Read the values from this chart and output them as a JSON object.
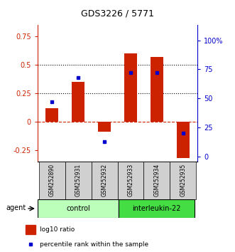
{
  "title": "GDS3226 / 5771",
  "categories": [
    "GSM252890",
    "GSM252931",
    "GSM252932",
    "GSM252933",
    "GSM252934",
    "GSM252935"
  ],
  "log10_ratio": [
    0.12,
    0.35,
    -0.09,
    0.6,
    0.57,
    -0.32
  ],
  "percentile_rank": [
    47,
    68,
    13,
    72,
    72,
    20
  ],
  "ylim_left": [
    -0.35,
    0.85
  ],
  "ylim_right": [
    -4,
    113
  ],
  "yticks_left": [
    -0.25,
    0,
    0.25,
    0.5,
    0.75
  ],
  "yticks_right": [
    0,
    25,
    50,
    75,
    100
  ],
  "ytick_labels_left": [
    "-0.25",
    "0",
    "0.25",
    "0.5",
    "0.75"
  ],
  "ytick_labels_right": [
    "0",
    "25",
    "50",
    "75",
    "100%"
  ],
  "hlines": [
    0.25,
    0.5
  ],
  "bar_color": "#cc2200",
  "dot_color": "#0000cc",
  "zero_line_color": "#cc2200",
  "control_color": "#bbffbb",
  "interleukin_color": "#44dd44",
  "control_label": "control",
  "interleukin_label": "interleukin-22",
  "agent_label": "agent",
  "legend_bar": "log10 ratio",
  "legend_dot": "percentile rank within the sample",
  "bar_width": 0.5,
  "background_color": "#ffffff"
}
